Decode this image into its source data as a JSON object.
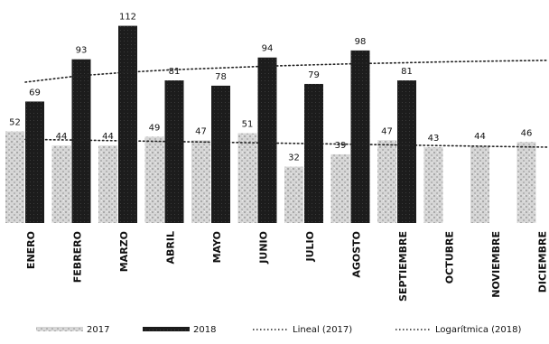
{
  "chart_data": {
    "type": "bar",
    "categories": [
      "ENERO",
      "FEBRERO",
      "MARZO",
      "ABRIL",
      "MAYO",
      "JUNIO",
      "JULIO",
      "AGOSTO",
      "SEPTIEMBRE",
      "OCTUBRE",
      "NOVIEMBRE",
      "DICIEMBRE"
    ],
    "series": [
      {
        "name": "2017",
        "values": [
          52,
          44,
          44,
          49,
          47,
          51,
          32,
          39,
          47,
          43,
          44,
          46
        ],
        "color": "#c9c9c9"
      },
      {
        "name": "2018",
        "values": [
          69,
          93,
          112,
          81,
          78,
          94,
          79,
          98,
          81,
          null,
          null,
          null
        ],
        "color": "#1c1c1c"
      }
    ],
    "trendlines": [
      {
        "name": "Lineal (2017)",
        "series": "2017",
        "kind": "linear",
        "values": [
          47.5,
          47.1,
          46.7,
          46.3,
          45.9,
          45.5,
          45.1,
          44.7,
          44.3,
          43.9,
          43.5,
          43.1
        ]
      },
      {
        "name": "Logarítmica (2018)",
        "series": "2018",
        "kind": "logarithmic",
        "values": [
          80,
          83.5,
          85.5,
          87,
          88,
          89,
          89.8,
          90.5,
          91,
          91.6,
          92,
          92.4
        ]
      }
    ],
    "ylim": [
      0,
      118
    ],
    "grid": false,
    "legend": "bottom",
    "title": "",
    "xlabel": "",
    "ylabel": ""
  }
}
